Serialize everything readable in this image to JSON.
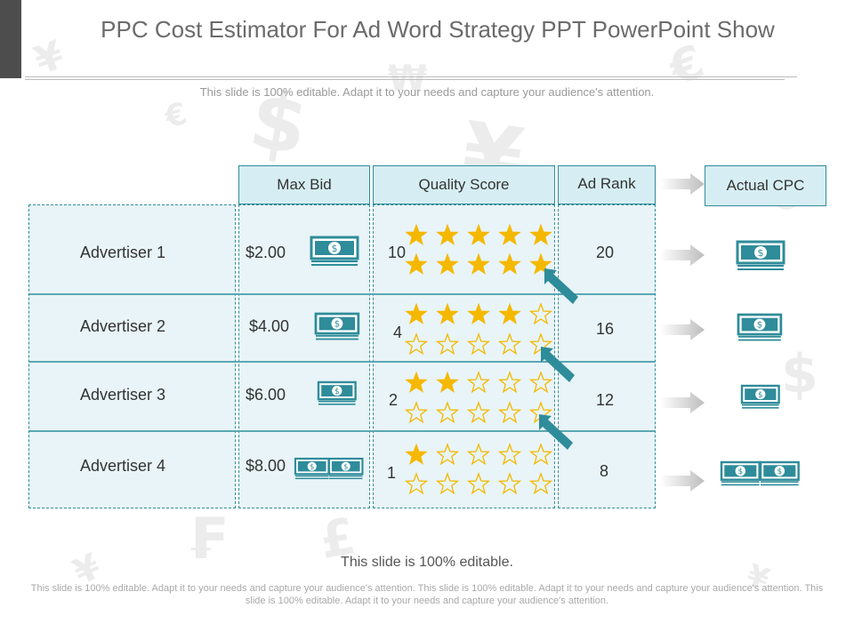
{
  "title": "PPC Cost Estimator For Ad Word Strategy PPT PowerPoint Show",
  "subtitle": "This slide is 100% editable. Adapt it to your needs and capture your audience's attention.",
  "headers": {
    "max_bid": "Max Bid",
    "quality_score": "Quality Score",
    "ad_rank": "Ad Rank",
    "actual_cpc": "Actual CPC"
  },
  "rows": [
    {
      "advertiser": "Advertiser 1",
      "bid": "$2.00",
      "score": "10",
      "rank": "20",
      "filled_stars": 10
    },
    {
      "advertiser": "Advertiser 2",
      "bid": "$4.00",
      "score": "4",
      "rank": "16",
      "filled_stars": 4
    },
    {
      "advertiser": "Advertiser 3",
      "bid": "$6.00",
      "score": "2",
      "rank": "12",
      "filled_stars": 2
    },
    {
      "advertiser": "Advertiser 4",
      "bid": "$8.00",
      "score": "1",
      "rank": "8",
      "filled_stars": 1
    }
  ],
  "footer": {
    "editable": "This slide is 100% editable.",
    "body": "This slide is 100% editable. Adapt it to your needs and capture your audience's attention. This slide is 100% editable. Adapt it to your needs and capture your audience's attention. This slide is 100% editable. Adapt it to your needs and capture your audience's attention."
  },
  "colors": {
    "teal": "#2f8c9a",
    "star": "#f5b800",
    "cell_bg": "#e8f4f7",
    "header_bg": "#d6eef3",
    "arrow": "#d9d9d9"
  },
  "icons": [
    "dollar-bill-icon",
    "star-icon",
    "pointer-arrow-icon",
    "right-arrow-icon"
  ]
}
